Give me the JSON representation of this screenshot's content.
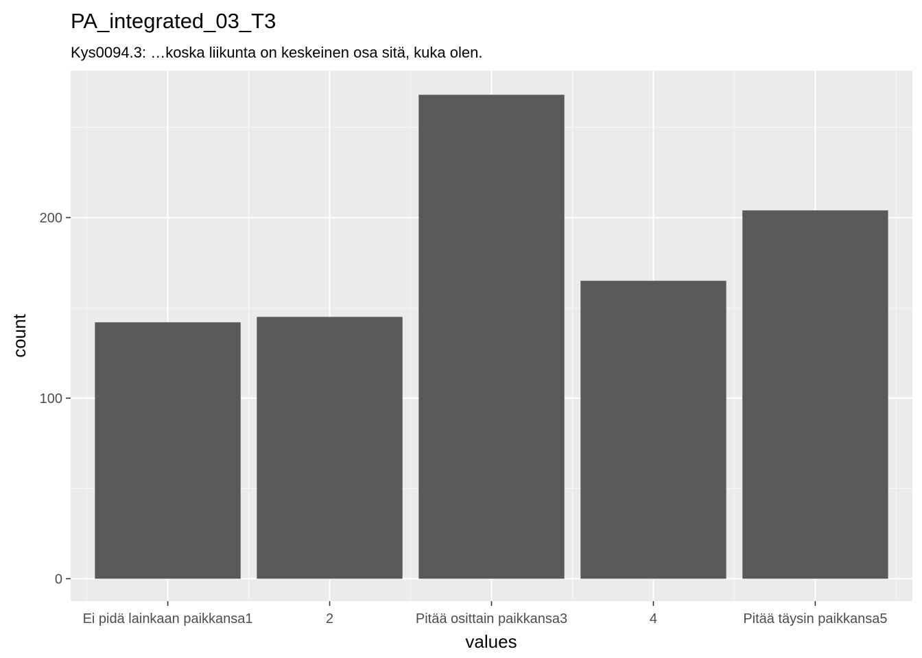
{
  "chart_data": {
    "type": "bar",
    "title": "PA_integrated_03_T3",
    "subtitle": "Kys0094.3: …koska liikunta on keskeinen osa sitä, kuka olen.",
    "xlabel": "values",
    "ylabel": "count",
    "categories": [
      "Ei pidä lainkaan paikkansa1",
      "2",
      "Pitää osittain paikkansa3",
      "4",
      "Pitää täysin paikkansa5"
    ],
    "values": [
      142,
      145,
      268,
      165,
      204
    ],
    "ylim": [
      -12.4,
      281.4
    ],
    "yticks": [
      0,
      100,
      200
    ],
    "ytick_labels": [
      "0",
      "100",
      "200"
    ],
    "grid": true,
    "legend": "none",
    "colors": {
      "bar": "#595959",
      "panel": "#ebebeb",
      "grid_major": "#ffffff",
      "grid_minor": "#f5f5f5",
      "tick": "#333333"
    }
  }
}
